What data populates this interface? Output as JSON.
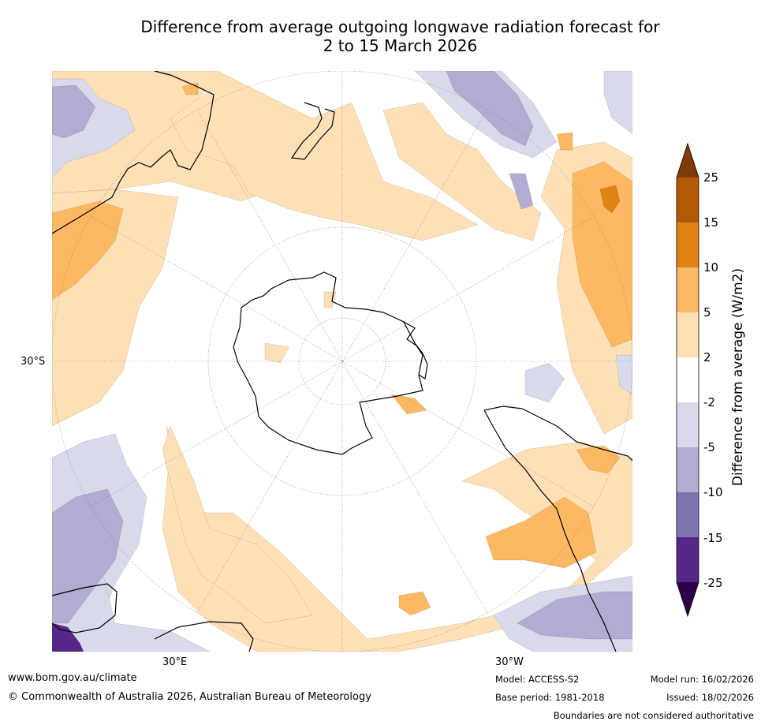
{
  "title": {
    "line1": "Difference from average outgoing longwave radiation forecast for",
    "line2": "2 to 15 March 2026"
  },
  "map": {
    "projection": "south-polar-stereographic",
    "labels": {
      "lat": "30°S",
      "lon_left": "30°E",
      "lon_right": "30°W"
    }
  },
  "colorbar": {
    "title": "Difference from average (W/m2)",
    "ticks": [
      "25",
      "15",
      "10",
      "5",
      "2",
      "-2",
      "-5",
      "-10",
      "-15",
      "-25"
    ],
    "colors": {
      "over": "#7f3b08",
      "b15_25": "#b35806",
      "b10_15": "#e08214",
      "b5_10": "#fdb863",
      "b2_5": "#fee0b6",
      "neutral": "#ffffff",
      "n2_5": "#d8daeb",
      "n5_10": "#b2abd2",
      "n10_15": "#8073ac",
      "n15_25": "#542788",
      "under": "#2d004b"
    }
  },
  "footer": {
    "url": "www.bom.gov.au/climate",
    "copyright": "© Commonwealth of Australia 2026, Australian Bureau of Meteorology",
    "model": "Model: ACCESS-S2",
    "base_period": "Base period: 1981-2018",
    "model_run": "Model run: 16/02/2026",
    "issued": "Issued: 18/02/2026",
    "disclaimer": "Boundaries are not considered authoritative"
  }
}
